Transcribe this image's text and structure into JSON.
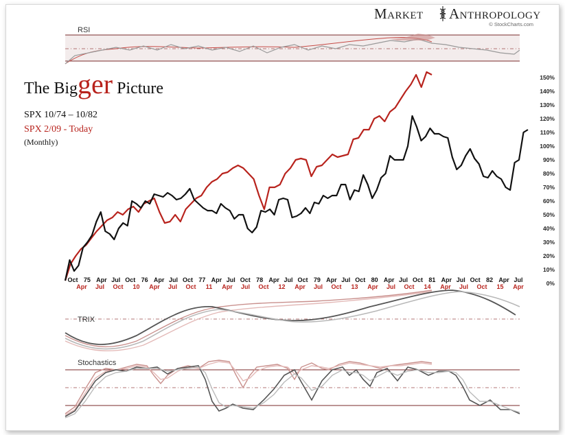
{
  "brand": {
    "left": "Market",
    "right": "Anthropology",
    "credit": "© StockCharts.com"
  },
  "title": {
    "pre": "The Big",
    "mid": "ger",
    "post": " Picture"
  },
  "subtitle": {
    "line1": "SPX 10/74 – 10/82",
    "line2": "SPX 2/09  - Today",
    "line3": "(Monthly)"
  },
  "colors": {
    "spx_1974_1982": "#111111",
    "spx_2009_today": "#b8231d",
    "grid": "#7a2a2a"
  },
  "panels": {
    "rsi": "RSI",
    "trix": "TRIX",
    "stochastics": "Stochastics"
  },
  "chart_data": {
    "type": "line",
    "y_unit": "percent gain",
    "ylim": [
      0,
      150
    ],
    "yticks": [
      "0%",
      "10%",
      "20%",
      "30%",
      "40%",
      "50%",
      "60%",
      "70%",
      "80%",
      "90%",
      "100%",
      "110%",
      "120%",
      "130%",
      "140%",
      "150%"
    ],
    "x_ticks_1974_1982": [
      "Oct",
      "75",
      "Apr",
      "Jul",
      "Oct",
      "76",
      "Apr",
      "Jul",
      "Oct",
      "77",
      "Apr",
      "Jul",
      "Oct",
      "78",
      "Apr",
      "Jul",
      "Oct",
      "79",
      "Apr",
      "Jul",
      "Oct",
      "80",
      "Apr",
      "Jul",
      "Oct",
      "81",
      "Apr",
      "Jul",
      "Oct",
      "82",
      "Apr",
      "Jul"
    ],
    "x_ticks_2009_today": [
      "Apr",
      "Jul",
      "Oct",
      "10",
      "Apr",
      "Jul",
      "Oct",
      "11",
      "Apr",
      "Jul",
      "Oct",
      "12",
      "Apr",
      "Jul",
      "Oct",
      "13",
      "Apr",
      "Jul",
      "Oct",
      "14",
      "Apr",
      "Jul",
      "Oct",
      "15",
      "Apr"
    ],
    "series": [
      {
        "name": "SPX 10/74 – 10/82",
        "values": [
          2,
          17,
          9,
          13,
          26,
          30,
          35,
          45,
          52,
          38,
          36,
          32,
          40,
          44,
          42,
          60,
          58,
          55,
          60,
          58,
          65,
          64,
          63,
          66,
          64,
          61,
          62,
          65,
          69,
          61,
          58,
          55,
          53,
          53,
          51,
          58,
          55,
          53,
          47,
          50,
          50,
          40,
          37,
          41,
          53,
          52,
          54,
          50,
          61,
          62,
          61,
          48,
          49,
          51,
          55,
          51,
          59,
          58,
          64,
          62,
          64,
          64,
          72,
          72,
          61,
          68,
          67,
          79,
          72,
          62,
          68,
          77,
          80,
          93,
          90,
          90,
          90,
          100,
          122,
          114,
          104,
          107,
          113,
          109,
          109,
          107,
          106,
          92,
          83,
          86,
          93,
          98,
          91,
          87,
          78,
          77,
          82,
          78,
          76,
          70,
          68,
          88,
          90,
          110,
          112
        ]
      },
      {
        "name": "SPX 2/09  - Today",
        "values": [
          2,
          14,
          20,
          25,
          28,
          33,
          38,
          42,
          46,
          48,
          52,
          50,
          54,
          56,
          52,
          58,
          60,
          62,
          52,
          44,
          45,
          50,
          45,
          54,
          58,
          62,
          64,
          70,
          74,
          76,
          80,
          81,
          84,
          86,
          84,
          80,
          76,
          64,
          54,
          70,
          70,
          72,
          80,
          84,
          90,
          91,
          90,
          78,
          85,
          86,
          90,
          94,
          92,
          93,
          94,
          105,
          106,
          112,
          112,
          120,
          122,
          118,
          125,
          128,
          134,
          140,
          145,
          152,
          143,
          154,
          152
        ]
      }
    ]
  }
}
